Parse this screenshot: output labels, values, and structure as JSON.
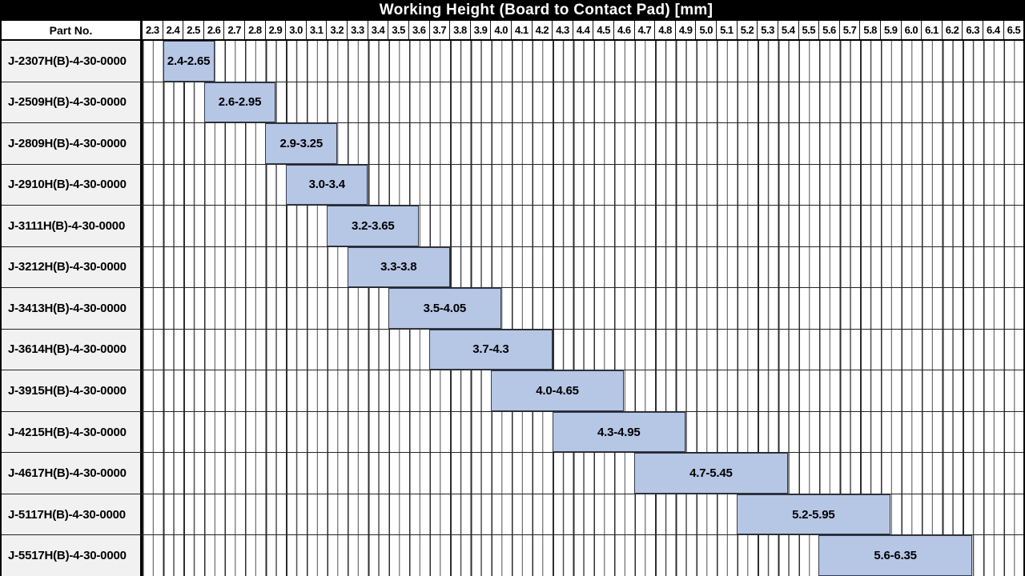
{
  "chart_data": {
    "type": "bar",
    "variant": "horizontal-range-gantt",
    "title": "Working Height (Board to Contact Pad) [mm]",
    "part_col_header": "Part No.",
    "axis": {
      "domain_min": 2.3,
      "domain_max": 6.6,
      "tick_step": 0.1,
      "ticks": [
        "2.3",
        "2.4",
        "2.5",
        "2.6",
        "2.7",
        "2.8",
        "2.9",
        "3.0",
        "3.1",
        "3.2",
        "3.3",
        "3.4",
        "3.5",
        "3.6",
        "3.7",
        "3.8",
        "3.9",
        "4.0",
        "4.1",
        "4.2",
        "4.3",
        "4.4",
        "4.5",
        "4.6",
        "4.7",
        "4.8",
        "4.9",
        "5.0",
        "5.1",
        "5.2",
        "5.3",
        "5.4",
        "5.5",
        "5.6",
        "5.7",
        "5.8",
        "5.9",
        "6.0",
        "6.1",
        "6.2",
        "6.3",
        "6.4",
        "6.5"
      ]
    },
    "grid": "on",
    "legend": "none",
    "rows": [
      {
        "part_no": "J-2307H(B)-4-30-0000",
        "range_start": 2.4,
        "range_end": 2.65,
        "label": "2.4-2.65"
      },
      {
        "part_no": "J-2509H(B)-4-30-0000",
        "range_start": 2.6,
        "range_end": 2.95,
        "label": "2.6-2.95"
      },
      {
        "part_no": "J-2809H(B)-4-30-0000",
        "range_start": 2.9,
        "range_end": 3.25,
        "label": "2.9-3.25"
      },
      {
        "part_no": "J-2910H(B)-4-30-0000",
        "range_start": 3.0,
        "range_end": 3.4,
        "label": "3.0-3.4"
      },
      {
        "part_no": "J-3111H(B)-4-30-0000",
        "range_start": 3.2,
        "range_end": 3.65,
        "label": "3.2-3.65"
      },
      {
        "part_no": "J-3212H(B)-4-30-0000",
        "range_start": 3.3,
        "range_end": 3.8,
        "label": "3.3-3.8"
      },
      {
        "part_no": "J-3413H(B)-4-30-0000",
        "range_start": 3.5,
        "range_end": 4.05,
        "label": "3.5-4.05"
      },
      {
        "part_no": "J-3614H(B)-4-30-0000",
        "range_start": 3.7,
        "range_end": 4.3,
        "label": "3.7-4.3"
      },
      {
        "part_no": "J-3915H(B)-4-30-0000",
        "range_start": 4.0,
        "range_end": 4.65,
        "label": "4.0-4.65"
      },
      {
        "part_no": "J-4215H(B)-4-30-0000",
        "range_start": 4.3,
        "range_end": 4.95,
        "label": "4.3-4.95"
      },
      {
        "part_no": "J-4617H(B)-4-30-0000",
        "range_start": 4.7,
        "range_end": 5.45,
        "label": "4.7-5.45"
      },
      {
        "part_no": "J-5117H(B)-4-30-0000",
        "range_start": 5.2,
        "range_end": 5.95,
        "label": "5.2-5.95"
      },
      {
        "part_no": "J-5517H(B)-4-30-0000",
        "range_start": 5.6,
        "range_end": 6.35,
        "label": "5.6-6.35"
      }
    ],
    "colors": {
      "bar_fill": "#b6c6e5",
      "bar_border": "#343c4d",
      "part_cell_bg": "#f1f1f1",
      "title_bg": "#000000",
      "title_text": "#ffffff",
      "grid_line": "#2d2d2d"
    }
  }
}
